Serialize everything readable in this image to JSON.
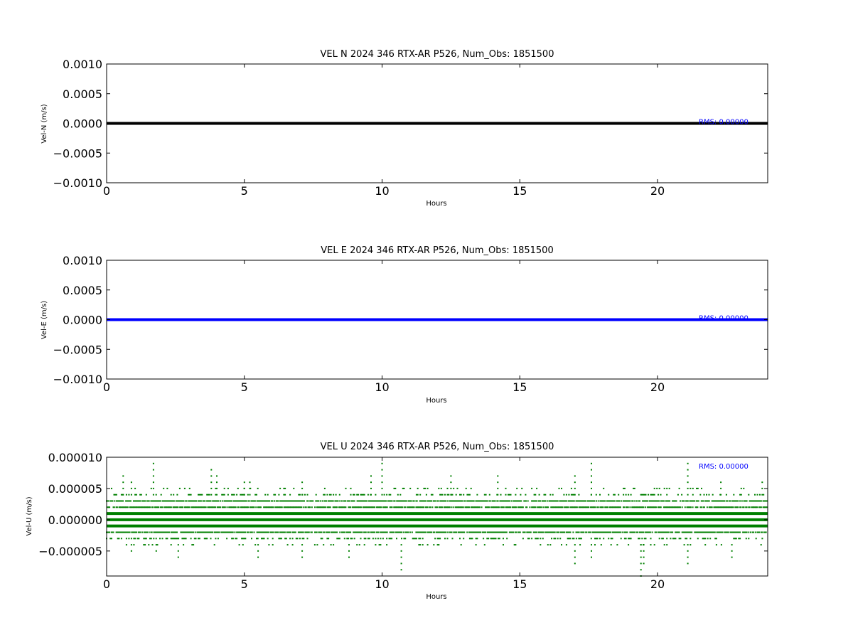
{
  "chart_data": [
    {
      "type": "line",
      "title": "VEL N 2024 346 RTX-AR  P526, Num_Obs: 1851500",
      "xlabel": "Hours",
      "ylabel": "Vel-N (m/s)",
      "xlim": [
        0,
        24
      ],
      "ylim": [
        -0.001,
        0.001
      ],
      "x_ticks": [
        0,
        5,
        10,
        15,
        20
      ],
      "x_tick_labels": [
        "0",
        "5",
        "10",
        "15",
        "20"
      ],
      "y_ticks": [
        0.001,
        0.0005,
        0.0,
        -0.0005,
        -0.001
      ],
      "y_tick_labels": [
        "0.0010",
        "0.0005",
        "0.0000",
        "−0.0005",
        "−0.0010"
      ],
      "series": [
        {
          "color": "#000000",
          "x": [
            0,
            24
          ],
          "values": [
            0,
            0
          ]
        }
      ],
      "annotation": "RMS:  0.00000",
      "grid": false
    },
    {
      "type": "line",
      "title": "VEL E 2024 346 RTX-AR  P526, Num_Obs: 1851500",
      "xlabel": "Hours",
      "ylabel": "Vel-E (m/s)",
      "xlim": [
        0,
        24
      ],
      "ylim": [
        -0.001,
        0.001
      ],
      "x_ticks": [
        0,
        5,
        10,
        15,
        20
      ],
      "x_tick_labels": [
        "0",
        "5",
        "10",
        "15",
        "20"
      ],
      "y_ticks": [
        0.001,
        0.0005,
        0.0,
        -0.0005,
        -0.001
      ],
      "y_tick_labels": [
        "0.0010",
        "0.0005",
        "0.0000",
        "−0.0005",
        "−0.0010"
      ],
      "series": [
        {
          "color": "#0000ff",
          "x": [
            0,
            24
          ],
          "values": [
            0,
            0
          ]
        }
      ],
      "annotation": "RMS:  0.00000",
      "grid": false
    },
    {
      "type": "scatter",
      "title": "VEL U 2024 346 RTX-AR  P526, Num_Obs: 1851500",
      "xlabel": "Hours",
      "ylabel": "Vel-U (m/s)",
      "xlim": [
        0,
        24
      ],
      "ylim": [
        -9e-06,
        1e-05
      ],
      "x_ticks": [
        0,
        5,
        10,
        15,
        20
      ],
      "x_tick_labels": [
        "0",
        "5",
        "10",
        "15",
        "20"
      ],
      "y_ticks": [
        1e-05,
        5e-06,
        0.0,
        -5e-06
      ],
      "y_tick_labels": [
        "0.000010",
        "0.000005",
        "0.000000",
        "−0.000005"
      ],
      "series": [
        {
          "color": "#008000",
          "dense_levels": [
            1e-06,
            0.0,
            -1e-06
          ],
          "frequent_levels": [
            3e-06,
            2e-06,
            -2e-06
          ],
          "sparse_levels": [
            4e-06,
            5e-06,
            -3e-06,
            -4e-06
          ],
          "outliers": [
            {
              "x": 0.6,
              "y": 7e-06
            },
            {
              "x": 0.9,
              "y": 6e-06
            },
            {
              "x": 0.9,
              "y": -5e-06
            },
            {
              "x": 1.7,
              "y": 9e-06
            },
            {
              "x": 1.8,
              "y": -5e-06
            },
            {
              "x": 2.6,
              "y": -6e-06
            },
            {
              "x": 3.8,
              "y": 8e-06
            },
            {
              "x": 4.0,
              "y": 7e-06
            },
            {
              "x": 5.0,
              "y": 6e-06
            },
            {
              "x": 5.2,
              "y": 6e-06
            },
            {
              "x": 5.5,
              "y": -6e-06
            },
            {
              "x": 7.1,
              "y": -6e-06
            },
            {
              "x": 7.1,
              "y": 6e-06
            },
            {
              "x": 8.8,
              "y": -6e-06
            },
            {
              "x": 9.6,
              "y": 7e-06
            },
            {
              "x": 10.0,
              "y": 9e-06
            },
            {
              "x": 10.7,
              "y": -8e-06
            },
            {
              "x": 12.5,
              "y": 7e-06
            },
            {
              "x": 14.2,
              "y": 7e-06
            },
            {
              "x": 17.0,
              "y": 7e-06
            },
            {
              "x": 17.0,
              "y": -7e-06
            },
            {
              "x": 17.6,
              "y": 9e-06
            },
            {
              "x": 17.6,
              "y": -6e-06
            },
            {
              "x": 19.4,
              "y": -9e-06
            },
            {
              "x": 19.5,
              "y": -7e-06
            },
            {
              "x": 21.1,
              "y": 9e-06
            },
            {
              "x": 21.1,
              "y": -7e-06
            },
            {
              "x": 22.3,
              "y": 6e-06
            },
            {
              "x": 22.7,
              "y": -6e-06
            },
            {
              "x": 23.8,
              "y": 6e-06
            }
          ]
        }
      ],
      "annotation": "RMS:  0.00000",
      "grid": false
    }
  ]
}
